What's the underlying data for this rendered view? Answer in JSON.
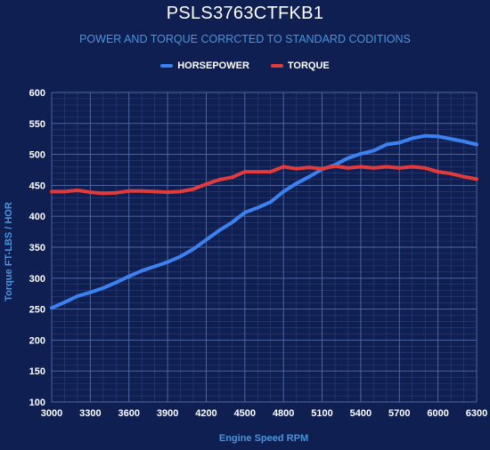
{
  "chart_data": {
    "type": "line",
    "title": "PSLS3763CTFKB1",
    "subtitle": "POWER AND TORQUE CORRCTED TO STANDARD CODITIONS",
    "xlabel": "Engine Speed RPM",
    "ylabel": "Torque FT-LBS / HOR",
    "xlim": [
      3000,
      6300
    ],
    "ylim": [
      100,
      600
    ],
    "x_ticks": [
      3000,
      3300,
      3600,
      3900,
      4200,
      4500,
      4800,
      5100,
      5400,
      5700,
      6000,
      6300
    ],
    "y_ticks": [
      100,
      150,
      200,
      250,
      300,
      350,
      400,
      450,
      500,
      550,
      600
    ],
    "grid": true,
    "legend_position": "top-center",
    "x": [
      3000,
      3100,
      3200,
      3300,
      3400,
      3500,
      3600,
      3700,
      3800,
      3900,
      4000,
      4100,
      4200,
      4300,
      4400,
      4500,
      4600,
      4700,
      4800,
      4900,
      5000,
      5100,
      5200,
      5300,
      5400,
      5500,
      5600,
      5700,
      5800,
      5900,
      6000,
      6100,
      6200,
      6300
    ],
    "series": [
      {
        "name": "HORSEPOWER",
        "color": "#3b82f0",
        "values": [
          252,
          261,
          271,
          277,
          284,
          293,
          303,
          312,
          319,
          326,
          335,
          347,
          362,
          377,
          390,
          406,
          414,
          423,
          440,
          453,
          464,
          476,
          483,
          494,
          501,
          506,
          516,
          519,
          526,
          530,
          529,
          525,
          521,
          516
        ]
      },
      {
        "name": "TORQUE",
        "color": "#e23b3b",
        "values": [
          440,
          440,
          442,
          439,
          437,
          438,
          441,
          441,
          440,
          439,
          440,
          444,
          452,
          459,
          463,
          472,
          472,
          472,
          480,
          477,
          479,
          477,
          481,
          478,
          480,
          478,
          480,
          478,
          480,
          478,
          472,
          469,
          464,
          460
        ]
      }
    ]
  }
}
